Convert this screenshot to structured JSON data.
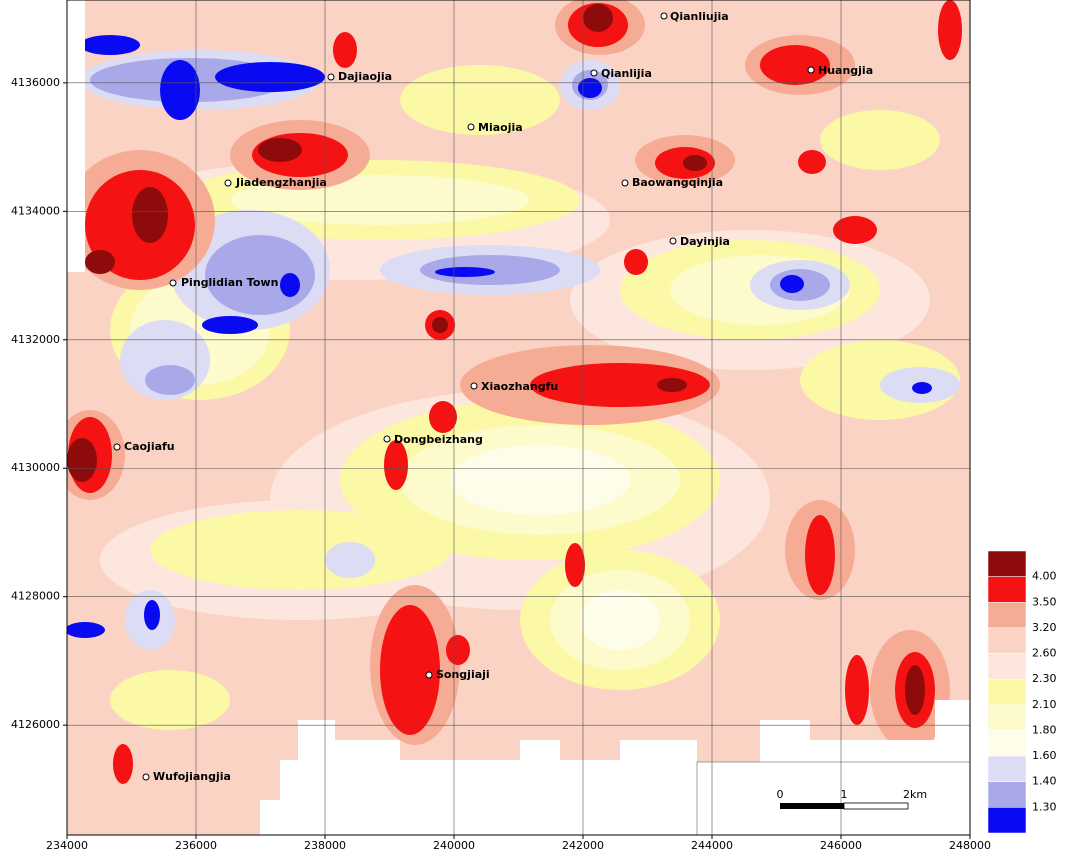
{
  "map": {
    "xlim": [
      234000,
      248000
    ],
    "ylim": [
      4124290,
      4137290
    ],
    "xticks": [
      234000,
      236000,
      238000,
      240000,
      242000,
      244000,
      246000,
      248000
    ],
    "yticks": [
      4126000,
      4128000,
      4130000,
      4132000,
      4134000,
      4136000
    ],
    "places": [
      "Qianliujia",
      "Dajiaojia",
      "Qianlijia",
      "Huangjia",
      "Miaojia",
      "Jiadengzhanjia",
      "Baowangqinjia",
      "Dayinjia",
      "Pinglidian Town",
      "Xiaozhangfu",
      "Dongbeizhang",
      "Caojiafu",
      "Songjiaji",
      "Wufojiangjia"
    ],
    "legend": {
      "colors": [
        "#8e0b0b",
        "#f41212",
        "#f6ac94",
        "#fbd3c5",
        "#fde6dd",
        "#fbf8a6",
        "#fdfbcc",
        "#fefde9",
        "#dcdcf5",
        "#a9a9ea",
        "#0a0af2"
      ],
      "labels": [
        "4.00",
        "3.50",
        "3.20",
        "2.60",
        "2.30",
        "2.10",
        "1.80",
        "1.60",
        "1.40",
        "1.30"
      ]
    },
    "scale_bar": [
      "0",
      "1",
      "2km"
    ]
  }
}
